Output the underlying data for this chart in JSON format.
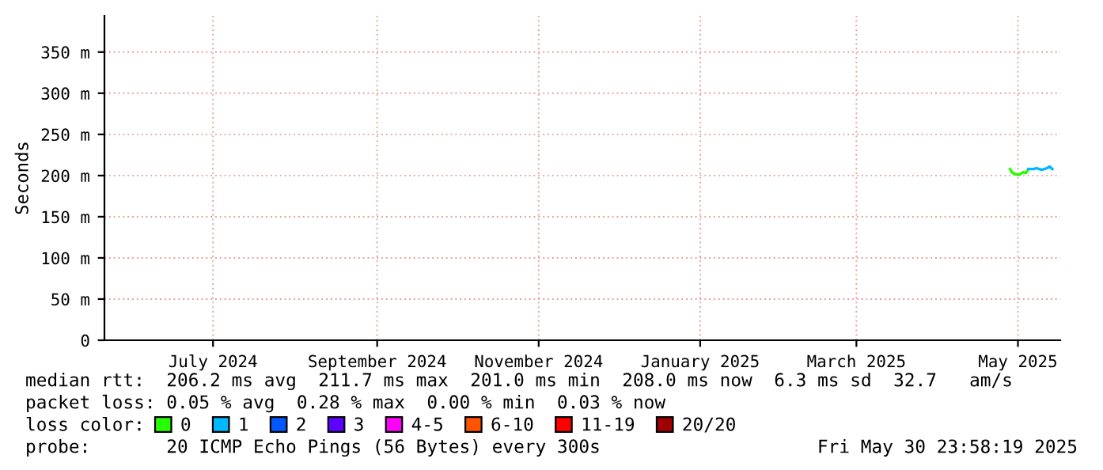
{
  "chart_data": {
    "type": "line",
    "ylabel": "Seconds",
    "legend_title": "loss color:",
    "legend": "bottom",
    "grid": true,
    "marker": "none",
    "line_style": "solid",
    "xlim": [
      "2024-06-04",
      "2025-05-30T23:58"
    ],
    "ylim": [
      0,
      394
    ],
    "xticks": [
      {
        "value": "2024-07-15",
        "label": "July 2024"
      },
      {
        "value": "2024-09-15",
        "label": "September 2024"
      },
      {
        "value": "2024-11-15",
        "label": "November 2024"
      },
      {
        "value": "2025-01-15",
        "label": "January 2025"
      },
      {
        "value": "2025-03-15",
        "label": "March 2025"
      },
      {
        "value": "2025-05-15",
        "label": "May 2025"
      }
    ],
    "yticks": [
      0,
      {
        "value": 50,
        "label": "50 m"
      },
      {
        "value": 100,
        "label": "100 m"
      },
      {
        "value": 150,
        "label": "150 m"
      },
      {
        "value": 200,
        "label": "200 m"
      },
      {
        "value": 250,
        "label": "250 m"
      },
      {
        "value": 300,
        "label": "300 m"
      },
      {
        "value": 350,
        "label": "350 m"
      }
    ],
    "series": [
      {
        "name": "0",
        "color": "#26ff00",
        "x": [
          "2025-05-12",
          "2025-05-13",
          "2025-05-14",
          "2025-05-15",
          "2025-05-16",
          "2025-05-17",
          "2025-05-18",
          "2025-05-19"
        ],
        "values": [
          208,
          203,
          202,
          201,
          202,
          204,
          203,
          208
        ]
      },
      {
        "name": "1",
        "color": "#00b8ff",
        "x": [
          "2025-05-19",
          "2025-05-20",
          "2025-05-21",
          "2025-05-22",
          "2025-05-23",
          "2025-05-24",
          "2025-05-25",
          "2025-05-26",
          "2025-05-27",
          "2025-05-28"
        ],
        "values": [
          208,
          208,
          208,
          209,
          208,
          207,
          208,
          209,
          211,
          208
        ]
      },
      {
        "name": "2",
        "color": "#0059ff"
      },
      {
        "name": "3",
        "color": "#5e00ff"
      },
      {
        "name": "4-5",
        "color": "#ff00ff"
      },
      {
        "name": "6-10",
        "color": "#ff5500"
      },
      {
        "name": "11-19",
        "color": "#ff0000"
      },
      {
        "name": "20/20",
        "color": "#a10000"
      }
    ],
    "annotations": [
      "median rtt:  206.2 ms avg  211.7 ms max  201.0 ms min  208.0 ms now  6.3 ms sd  32.7   am/s",
      "packet loss: 0.05 % avg  0.28 % max  0.00 % min  0.03 % now",
      "probe:       20 ICMP Echo Pings (56 Bytes) every 300s",
      "Fri May 30 23:58:19 2025"
    ]
  }
}
